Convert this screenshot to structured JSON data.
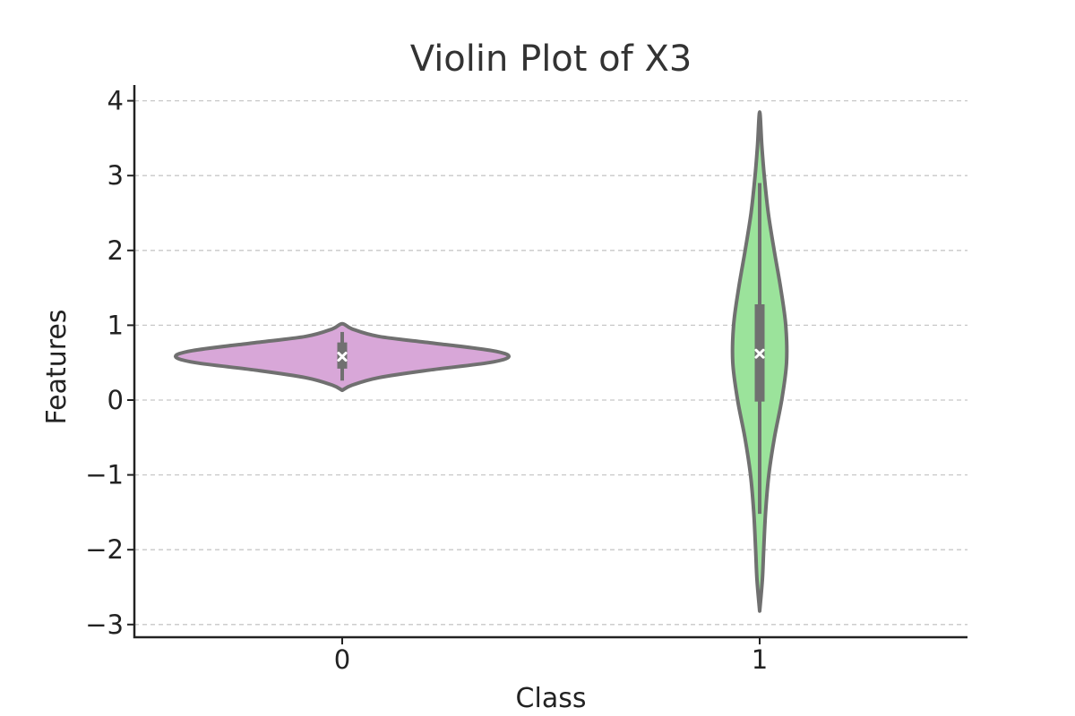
{
  "chart_data": {
    "type": "violin",
    "title": "Violin Plot of X3",
    "xlabel": "Class",
    "ylabel": "Features",
    "categories": [
      "0",
      "1"
    ],
    "ylim": [
      -3.15,
      4.2
    ],
    "yticks": [
      4,
      3,
      2,
      1,
      0,
      -1,
      -2,
      -3
    ],
    "ytick_labels": [
      "4",
      "3",
      "2",
      "1",
      "0",
      "−1",
      "−2",
      "−3"
    ],
    "grid": "horizontal dashed",
    "violins": [
      {
        "category": "0",
        "fill": "#d8a7d8",
        "median": 0.58,
        "q1": 0.42,
        "q3": 0.77,
        "whisker_low": 0.26,
        "whisker_high": 0.91,
        "kde_min": 0.13,
        "kde_max": 1.02,
        "profile": [
          [
            0.13,
            0.0
          ],
          [
            0.2,
            0.06
          ],
          [
            0.3,
            0.22
          ],
          [
            0.4,
            0.52
          ],
          [
            0.5,
            0.88
          ],
          [
            0.58,
            1.0
          ],
          [
            0.66,
            0.9
          ],
          [
            0.76,
            0.55
          ],
          [
            0.85,
            0.22
          ],
          [
            0.95,
            0.06
          ],
          [
            1.02,
            0.0
          ]
        ]
      },
      {
        "category": "1",
        "fill": "#9be39b",
        "median": 0.62,
        "q1": -0.02,
        "q3": 1.28,
        "whisker_low": -1.52,
        "whisker_high": 2.9,
        "kde_min": -2.82,
        "kde_max": 3.85,
        "profile": [
          [
            -2.82,
            0.0
          ],
          [
            -2.4,
            0.1
          ],
          [
            -2.0,
            0.15
          ],
          [
            -1.5,
            0.22
          ],
          [
            -1.0,
            0.34
          ],
          [
            -0.5,
            0.55
          ],
          [
            0.0,
            0.82
          ],
          [
            0.5,
            1.0
          ],
          [
            1.0,
            0.97
          ],
          [
            1.5,
            0.78
          ],
          [
            2.0,
            0.54
          ],
          [
            2.5,
            0.32
          ],
          [
            3.0,
            0.17
          ],
          [
            3.4,
            0.08
          ],
          [
            3.85,
            0.0
          ]
        ]
      }
    ],
    "colors": {
      "outline": "#707070",
      "box": "#707070",
      "median_marker": "#ffffff",
      "axis": "#222222",
      "grid": "#c8c8c8"
    }
  }
}
